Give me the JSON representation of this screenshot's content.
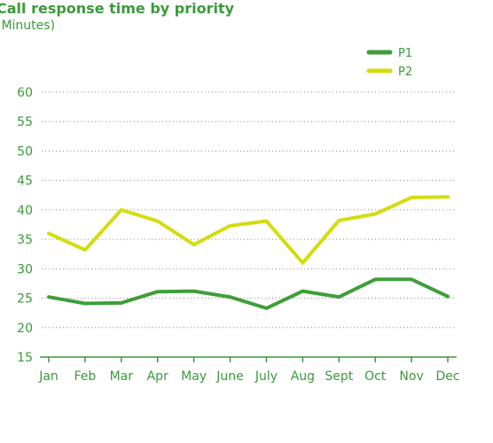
{
  "chart_data": {
    "type": "line",
    "title": "Call response time by priority",
    "subtitle": "(Minutes)",
    "xlabel": "",
    "ylabel": "",
    "categories": [
      "Jan",
      "Feb",
      "Mar",
      "Apr",
      "May",
      "June",
      "July",
      "Aug",
      "Sept",
      "Oct",
      "Nov",
      "Dec"
    ],
    "ylim": [
      15,
      60
    ],
    "yticks": [
      15,
      20,
      25,
      30,
      35,
      40,
      45,
      50,
      55,
      60
    ],
    "grid": true,
    "legend_position": "top-right",
    "series": [
      {
        "name": "P1",
        "color": "#3e9e3a",
        "values": [
          25.2,
          24.1,
          24.2,
          26.1,
          26.2,
          25.2,
          23.3,
          26.2,
          25.2,
          28.2,
          28.2,
          25.3
        ]
      },
      {
        "name": "P2",
        "color": "#d4dc0f",
        "values": [
          36.0,
          33.2,
          40.0,
          38.1,
          34.1,
          37.3,
          38.1,
          31.0,
          38.2,
          39.3,
          42.1,
          42.2
        ]
      }
    ]
  }
}
